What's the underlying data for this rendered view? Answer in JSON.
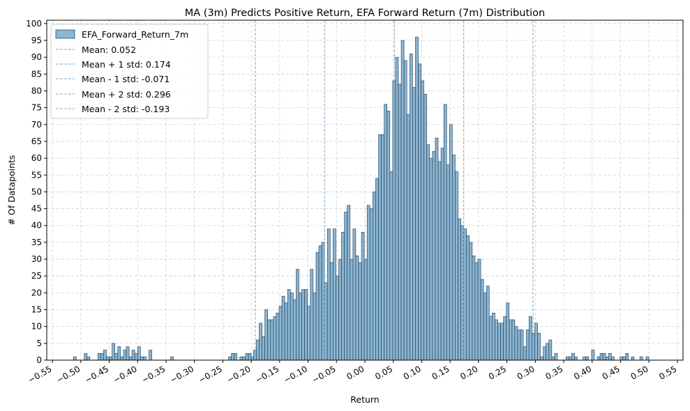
{
  "chart_data": {
    "type": "bar",
    "title": "MA (3m) Predicts Positive Return, EFA Forward Return (7m) Distribution",
    "xlabel": "Return",
    "ylabel": "# Of Datapoints",
    "xlim": [
      -0.56,
      0.56
    ],
    "ylim": [
      0,
      101
    ],
    "x_ticks": [
      -0.55,
      -0.5,
      -0.45,
      -0.4,
      -0.35,
      -0.3,
      -0.25,
      -0.2,
      -0.15,
      -0.1,
      -0.05,
      0.0,
      0.05,
      0.1,
      0.15,
      0.2,
      0.25,
      0.3,
      0.35,
      0.4,
      0.45,
      0.5,
      0.55
    ],
    "x_tick_labels": [
      "−0.55",
      "−0.50",
      "−0.45",
      "−0.40",
      "−0.35",
      "−0.30",
      "−0.25",
      "−0.20",
      "−0.15",
      "−0.10",
      "−0.05",
      "0.00",
      "0.05",
      "0.10",
      "0.15",
      "0.20",
      "0.25",
      "0.30",
      "0.35",
      "0.40",
      "0.45",
      "0.50",
      "0.55"
    ],
    "y_ticks": [
      0,
      5,
      10,
      15,
      20,
      25,
      30,
      35,
      40,
      45,
      50,
      55,
      60,
      65,
      70,
      75,
      80,
      85,
      90,
      95,
      100
    ],
    "y_tick_labels": [
      "0",
      "5",
      "10",
      "15",
      "20",
      "25",
      "30",
      "35",
      "40",
      "45",
      "50",
      "55",
      "60",
      "65",
      "70",
      "75",
      "80",
      "85",
      "90",
      "95",
      "100"
    ],
    "grid": true,
    "legend_position": "top-left",
    "bar_color": "#8ab5d3",
    "bar_edge_color": "#2f4a5e",
    "line_color": "#7fa8cc",
    "series": [
      {
        "name": "EFA_Forward_Return_7m",
        "bin_width": 0.00488,
        "bins": [
          [
            -0.513,
            1
          ],
          [
            -0.494,
            2
          ],
          [
            -0.489,
            1
          ],
          [
            -0.47,
            2
          ],
          [
            -0.465,
            2
          ],
          [
            -0.46,
            3
          ],
          [
            -0.455,
            1
          ],
          [
            -0.45,
            1
          ],
          [
            -0.445,
            5
          ],
          [
            -0.44,
            2
          ],
          [
            -0.435,
            4
          ],
          [
            -0.43,
            1
          ],
          [
            -0.425,
            3
          ],
          [
            -0.42,
            4
          ],
          [
            -0.415,
            1
          ],
          [
            -0.41,
            3
          ],
          [
            -0.405,
            2
          ],
          [
            -0.4,
            4
          ],
          [
            -0.395,
            1
          ],
          [
            -0.39,
            1
          ],
          [
            -0.38,
            3
          ],
          [
            -0.342,
            1
          ],
          [
            -0.24,
            1
          ],
          [
            -0.235,
            2
          ],
          [
            -0.23,
            2
          ],
          [
            -0.22,
            1
          ],
          [
            -0.215,
            1
          ],
          [
            -0.21,
            2
          ],
          [
            -0.205,
            2
          ],
          [
            -0.2,
            1
          ],
          [
            -0.196,
            3
          ],
          [
            -0.191,
            6
          ],
          [
            -0.186,
            11
          ],
          [
            -0.181,
            7
          ],
          [
            -0.176,
            15
          ],
          [
            -0.171,
            12
          ],
          [
            -0.166,
            12
          ],
          [
            -0.161,
            13
          ],
          [
            -0.156,
            14
          ],
          [
            -0.151,
            16
          ],
          [
            -0.146,
            19
          ],
          [
            -0.141,
            17
          ],
          [
            -0.136,
            21
          ],
          [
            -0.131,
            20
          ],
          [
            -0.126,
            18
          ],
          [
            -0.121,
            27
          ],
          [
            -0.116,
            20
          ],
          [
            -0.111,
            21
          ],
          [
            -0.106,
            21
          ],
          [
            -0.101,
            16
          ],
          [
            -0.096,
            27
          ],
          [
            -0.091,
            20
          ],
          [
            -0.086,
            32
          ],
          [
            -0.081,
            34
          ],
          [
            -0.076,
            35
          ],
          [
            -0.071,
            23
          ],
          [
            -0.066,
            39
          ],
          [
            -0.061,
            29
          ],
          [
            -0.056,
            39
          ],
          [
            -0.051,
            25
          ],
          [
            -0.046,
            30
          ],
          [
            -0.041,
            38
          ],
          [
            -0.036,
            44
          ],
          [
            -0.031,
            46
          ],
          [
            -0.026,
            30
          ],
          [
            -0.021,
            39
          ],
          [
            -0.016,
            31
          ],
          [
            -0.011,
            29
          ],
          [
            -0.006,
            38
          ],
          [
            -0.001,
            30
          ],
          [
            0.004,
            46
          ],
          [
            0.009,
            45
          ],
          [
            0.014,
            50
          ],
          [
            0.019,
            54
          ],
          [
            0.024,
            67
          ],
          [
            0.029,
            67
          ],
          [
            0.034,
            76
          ],
          [
            0.039,
            74
          ],
          [
            0.044,
            56
          ],
          [
            0.049,
            83
          ],
          [
            0.054,
            90
          ],
          [
            0.059,
            82
          ],
          [
            0.064,
            95
          ],
          [
            0.069,
            89
          ],
          [
            0.074,
            73
          ],
          [
            0.079,
            91
          ],
          [
            0.084,
            81
          ],
          [
            0.089,
            96
          ],
          [
            0.094,
            88
          ],
          [
            0.099,
            83
          ],
          [
            0.104,
            79
          ],
          [
            0.109,
            64
          ],
          [
            0.114,
            60
          ],
          [
            0.119,
            62
          ],
          [
            0.124,
            66
          ],
          [
            0.129,
            59
          ],
          [
            0.134,
            63
          ],
          [
            0.139,
            76
          ],
          [
            0.144,
            58
          ],
          [
            0.149,
            70
          ],
          [
            0.154,
            61
          ],
          [
            0.159,
            56
          ],
          [
            0.164,
            42
          ],
          [
            0.169,
            40
          ],
          [
            0.174,
            39
          ],
          [
            0.179,
            37
          ],
          [
            0.184,
            35
          ],
          [
            0.189,
            31
          ],
          [
            0.194,
            29
          ],
          [
            0.199,
            30
          ],
          [
            0.204,
            24
          ],
          [
            0.209,
            20
          ],
          [
            0.214,
            22
          ],
          [
            0.219,
            13
          ],
          [
            0.224,
            14
          ],
          [
            0.229,
            12
          ],
          [
            0.234,
            11
          ],
          [
            0.239,
            11
          ],
          [
            0.244,
            13
          ],
          [
            0.249,
            17
          ],
          [
            0.254,
            12
          ],
          [
            0.259,
            12
          ],
          [
            0.264,
            10
          ],
          [
            0.269,
            9
          ],
          [
            0.274,
            9
          ],
          [
            0.279,
            4
          ],
          [
            0.284,
            9
          ],
          [
            0.289,
            13
          ],
          [
            0.294,
            8
          ],
          [
            0.299,
            11
          ],
          [
            0.304,
            8
          ],
          [
            0.309,
            1
          ],
          [
            0.314,
            4
          ],
          [
            0.319,
            5
          ],
          [
            0.324,
            6
          ],
          [
            0.329,
            1
          ],
          [
            0.334,
            2
          ],
          [
            0.354,
            1
          ],
          [
            0.359,
            1
          ],
          [
            0.364,
            2
          ],
          [
            0.369,
            1
          ],
          [
            0.384,
            1
          ],
          [
            0.389,
            1
          ],
          [
            0.399,
            3
          ],
          [
            0.409,
            1
          ],
          [
            0.414,
            2
          ],
          [
            0.419,
            2
          ],
          [
            0.424,
            1
          ],
          [
            0.429,
            2
          ],
          [
            0.434,
            1
          ],
          [
            0.449,
            1
          ],
          [
            0.454,
            1
          ],
          [
            0.459,
            2
          ],
          [
            0.469,
            1
          ],
          [
            0.484,
            1
          ],
          [
            0.495,
            1
          ]
        ]
      }
    ],
    "reference_lines": [
      {
        "name": "Mean: 0.052",
        "x": 0.052
      },
      {
        "name": "Mean + 1 std: 0.174",
        "x": 0.174
      },
      {
        "name": "Mean - 1 std: -0.071",
        "x": -0.071
      },
      {
        "name": "Mean + 2 std: 0.296",
        "x": 0.296
      },
      {
        "name": "Mean - 2 std: -0.193",
        "x": -0.193
      }
    ]
  }
}
